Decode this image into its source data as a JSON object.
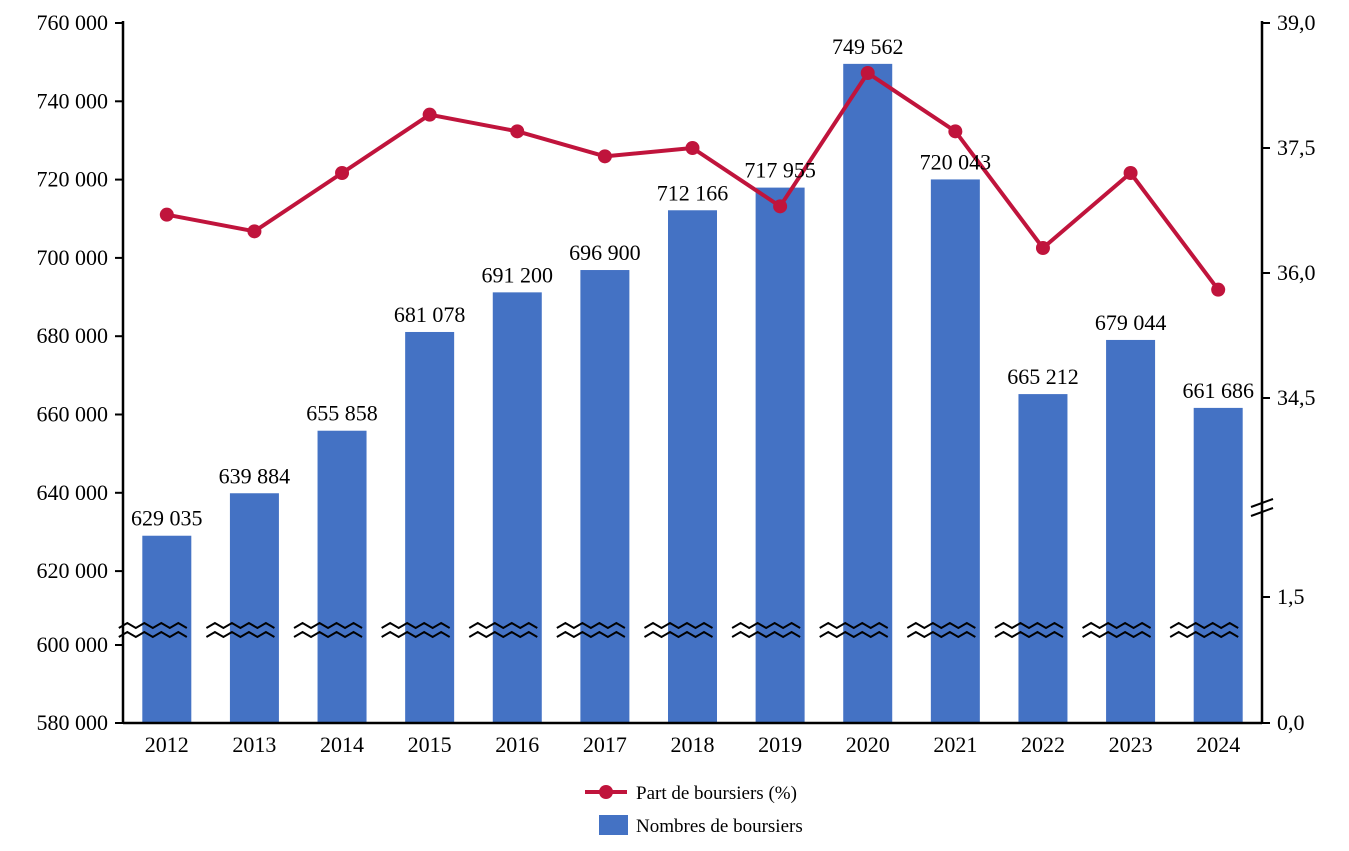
{
  "chart_data": {
    "type": "bar+line",
    "categories": [
      "2012",
      "2013",
      "2014",
      "2015",
      "2016",
      "2017",
      "2018",
      "2019",
      "2020",
      "2021",
      "2022",
      "2023",
      "2024"
    ],
    "series": [
      {
        "name": "Nombres de boursiers",
        "type": "bar",
        "axis": "left",
        "color": "#4472C4",
        "values": [
          629035,
          639884,
          655858,
          681078,
          691200,
          696900,
          712166,
          717955,
          749562,
          720043,
          665212,
          679044,
          661686
        ],
        "labels": [
          "629 035",
          "639 884",
          "655 858",
          "681 078",
          "691 200",
          "696 900",
          "712 166",
          "717 955",
          "749 562",
          "720 043",
          "665 212",
          "679 044",
          "661 686"
        ]
      },
      {
        "name": "Part de boursiers (%)",
        "type": "line",
        "axis": "right",
        "color": "#C0143C",
        "values": [
          36.7,
          36.5,
          37.2,
          37.9,
          37.7,
          37.4,
          37.5,
          36.8,
          38.4,
          37.7,
          36.3,
          37.2,
          35.8
        ]
      }
    ],
    "left_axis": {
      "ticks": [
        580000,
        600000,
        620000,
        640000,
        660000,
        680000,
        700000,
        720000,
        740000,
        760000
      ],
      "tick_labels": [
        "580 000",
        "600 000",
        "620 000",
        "640 000",
        "660 000",
        "680 000",
        "700 000",
        "720 000",
        "740 000",
        "760 000"
      ],
      "ylim": [
        580000,
        760000
      ],
      "broken": true
    },
    "right_axis": {
      "ticks": [
        0.0,
        1.5,
        34.5,
        36.0,
        37.5,
        39.0
      ],
      "tick_labels": [
        "0,0",
        "1,5",
        "34,5",
        "36,0",
        "37,5",
        "39,0"
      ],
      "ylim": [
        0,
        39
      ],
      "broken": true
    },
    "legend": {
      "placement": "bottom",
      "entries": [
        "Part de boursiers (%)",
        "Nombres de boursiers"
      ]
    },
    "title": "",
    "xlabel": "",
    "ylabel": ""
  }
}
